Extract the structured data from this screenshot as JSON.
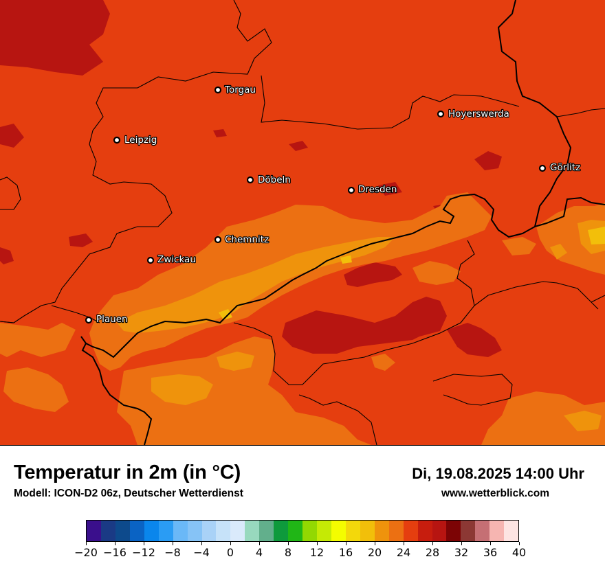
{
  "map": {
    "base_color": "#e53e0f",
    "cities": [
      {
        "name": "Torgau"
      },
      {
        "name": "Hoyerswerda"
      },
      {
        "name": "Leipzig"
      },
      {
        "name": "Görlitz"
      },
      {
        "name": "Döbeln"
      },
      {
        "name": "Dresden"
      },
      {
        "name": "Chemnitz"
      },
      {
        "name": "Zwickau"
      },
      {
        "name": "Plauen"
      }
    ]
  },
  "header": {
    "title": "Temperatur in 2m (in °C)",
    "model": "Modell: ICON-D2 06z, Deutscher Wetterdienst",
    "datetime": "Di, 19.08.2025 14:00 Uhr",
    "website": "www.wetterblick.com"
  },
  "colorbar": {
    "colors": [
      "#3a0f8c",
      "#1a3a85",
      "#0d4a8c",
      "#0a63c4",
      "#0a86ec",
      "#2a9cf4",
      "#6ab8f7",
      "#86c3f6",
      "#a9d2f7",
      "#c6e2f9",
      "#daeafb",
      "#98d9be",
      "#62af8c",
      "#0e9a3c",
      "#20b616",
      "#93d802",
      "#c5ea05",
      "#f4fd00",
      "#f3d80b",
      "#f2bf0a",
      "#ef930c",
      "#ec7012",
      "#e53e0f",
      "#c71d0e",
      "#b71511",
      "#7c0405",
      "#8c3834",
      "#c56f74",
      "#f6b5b1",
      "#fde4e2"
    ],
    "ticks": [
      "−20",
      "−16",
      "−12",
      "−8",
      "−4",
      "0",
      "4",
      "8",
      "12",
      "16",
      "20",
      "24",
      "28",
      "32",
      "36",
      "40"
    ]
  }
}
